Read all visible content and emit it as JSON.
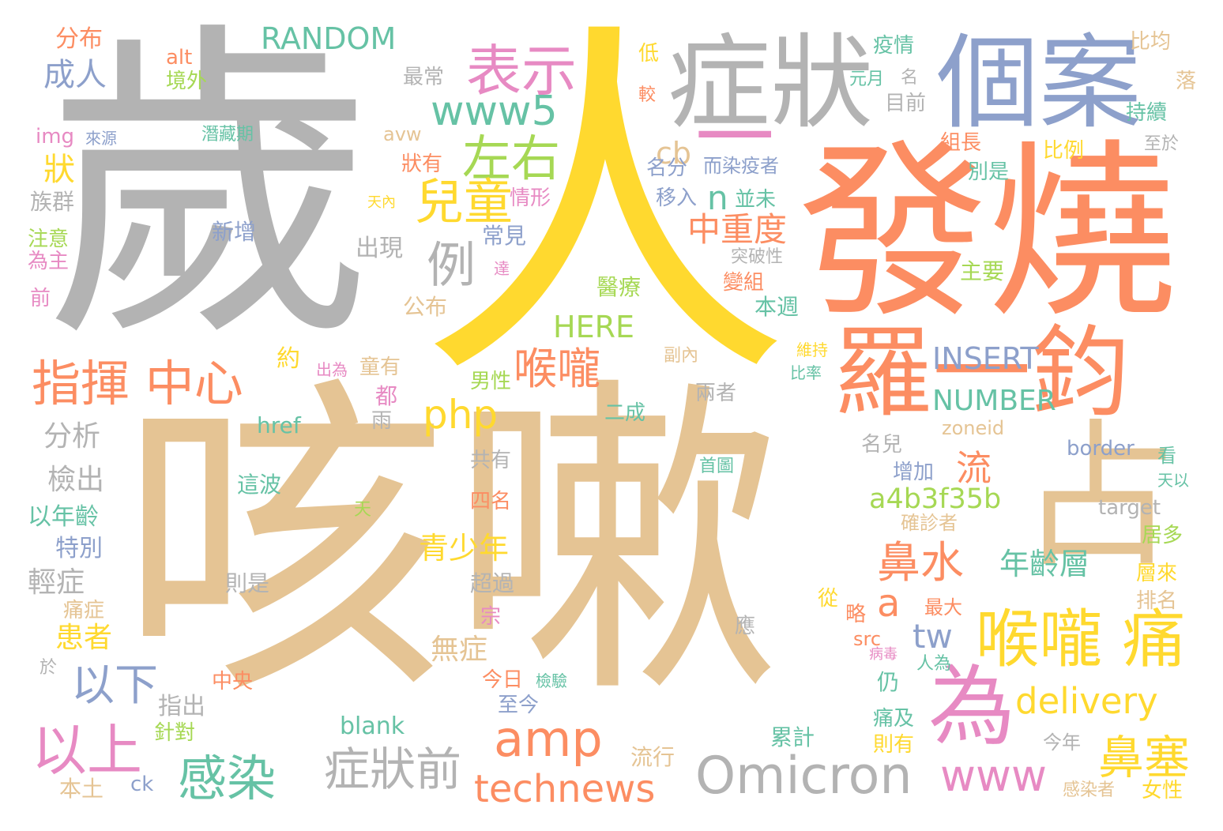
{
  "palette": {
    "gray": "#b3b3b3",
    "salmon": "#fc8d62",
    "blue": "#8da0cb",
    "pink": "#e78ac3",
    "green": "#a6d854",
    "yellow": "#ffd92f",
    "tan": "#e5c494",
    "teal": "#66c2a5"
  },
  "words": [
    {
      "text": "歲",
      "color": "gray"
    },
    {
      "text": "人",
      "color": "yellow"
    },
    {
      "text": "咳嗽",
      "color": "tan"
    },
    {
      "text": "發燒",
      "color": "salmon"
    },
    {
      "text": "症狀",
      "color": "gray"
    },
    {
      "text": "個案",
      "color": "blue"
    },
    {
      "text": "一",
      "color": "pink"
    },
    {
      "text": "羅一鈞",
      "color": "salmon"
    },
    {
      "text": "占",
      "color": "tan"
    },
    {
      "text": "為",
      "color": "pink"
    },
    {
      "text": "喉嚨 痛",
      "color": "yellow"
    },
    {
      "text": "表示",
      "color": "pink"
    },
    {
      "text": "www5",
      "color": "teal"
    },
    {
      "text": "左右",
      "color": "green"
    },
    {
      "text": "兒童",
      "color": "yellow"
    },
    {
      "text": "例",
      "color": "gray"
    },
    {
      "text": "指揮 中心",
      "color": "salmon"
    },
    {
      "text": "喉嚨",
      "color": "salmon"
    },
    {
      "text": "php",
      "color": "yellow"
    },
    {
      "text": "以上",
      "color": "pink"
    },
    {
      "text": "以下",
      "color": "blue"
    },
    {
      "text": "amp",
      "color": "salmon"
    },
    {
      "text": "感染",
      "color": "teal"
    },
    {
      "text": "症狀前",
      "color": "gray"
    },
    {
      "text": "technews",
      "color": "salmon"
    },
    {
      "text": "Omicron",
      "color": "gray"
    },
    {
      "text": "delivery",
      "color": "yellow"
    },
    {
      "text": "鼻塞",
      "color": "yellow"
    },
    {
      "text": "鼻水",
      "color": "salmon"
    },
    {
      "text": "www",
      "color": "pink"
    },
    {
      "text": "tw",
      "color": "blue"
    },
    {
      "text": "a",
      "color": "salmon"
    },
    {
      "text": "流",
      "color": "salmon"
    },
    {
      "text": "a4b3f35b",
      "color": "green"
    },
    {
      "text": "青少年",
      "color": "yellow"
    },
    {
      "text": "年齡層",
      "color": "teal"
    },
    {
      "text": "INSERT",
      "color": "blue"
    },
    {
      "text": "NUMBER",
      "color": "teal"
    },
    {
      "text": "HERE",
      "color": "green"
    },
    {
      "text": "RANDOM",
      "color": "teal"
    },
    {
      "text": "中重度",
      "color": "salmon"
    },
    {
      "text": "n",
      "color": "teal"
    },
    {
      "text": "cb",
      "color": "tan"
    },
    {
      "text": "分布",
      "color": "salmon"
    },
    {
      "text": "alt",
      "color": "salmon"
    },
    {
      "text": "境外",
      "color": "green"
    },
    {
      "text": "成人",
      "color": "blue"
    },
    {
      "text": "最常",
      "color": "gray"
    },
    {
      "text": "img",
      "color": "pink"
    },
    {
      "text": "來源",
      "color": "blue"
    },
    {
      "text": "潛藏期",
      "color": "teal"
    },
    {
      "text": "狀",
      "color": "yellow"
    },
    {
      "text": "族群",
      "color": "gray"
    },
    {
      "text": "注意",
      "color": "green"
    },
    {
      "text": "為主",
      "color": "pink"
    },
    {
      "text": "前",
      "color": "pink"
    },
    {
      "text": "約",
      "color": "yellow"
    },
    {
      "text": "分析",
      "color": "gray"
    },
    {
      "text": "檢出",
      "color": "gray"
    },
    {
      "text": "以年齡",
      "color": "teal"
    },
    {
      "text": "特別",
      "color": "blue"
    },
    {
      "text": "輕症",
      "color": "gray"
    },
    {
      "text": "痛症",
      "color": "tan"
    },
    {
      "text": "患者",
      "color": "yellow"
    },
    {
      "text": "於",
      "color": "gray"
    },
    {
      "text": "本土",
      "color": "tan"
    },
    {
      "text": "ck",
      "color": "blue"
    },
    {
      "text": "針對",
      "color": "green"
    },
    {
      "text": "指出",
      "color": "gray"
    },
    {
      "text": "中央",
      "color": "salmon"
    },
    {
      "text": "blank",
      "color": "teal"
    },
    {
      "text": "出現",
      "color": "gray"
    },
    {
      "text": "公布",
      "color": "tan"
    },
    {
      "text": "狀有",
      "color": "salmon"
    },
    {
      "text": "avw",
      "color": "tan"
    },
    {
      "text": "天內",
      "color": "yellow"
    },
    {
      "text": "情形",
      "color": "pink"
    },
    {
      "text": "新增",
      "color": "blue"
    },
    {
      "text": "常見",
      "color": "blue"
    },
    {
      "text": "達",
      "color": "pink"
    },
    {
      "text": "出為",
      "color": "pink"
    },
    {
      "text": "童有",
      "color": "tan"
    },
    {
      "text": "都",
      "color": "pink"
    },
    {
      "text": "雨",
      "color": "gray"
    },
    {
      "text": "href",
      "color": "teal"
    },
    {
      "text": "共有",
      "color": "gray"
    },
    {
      "text": "四名",
      "color": "salmon"
    },
    {
      "text": "天",
      "color": "green"
    },
    {
      "text": "則是",
      "color": "gray"
    },
    {
      "text": "超過",
      "color": "gray"
    },
    {
      "text": "宗",
      "color": "pink"
    },
    {
      "text": "這波",
      "color": "teal"
    },
    {
      "text": "無症",
      "color": "tan"
    },
    {
      "text": "今日",
      "color": "salmon"
    },
    {
      "text": "檢驗",
      "color": "teal"
    },
    {
      "text": "至今",
      "color": "blue"
    },
    {
      "text": "流行",
      "color": "tan"
    },
    {
      "text": "男性",
      "color": "green"
    },
    {
      "text": "二成",
      "color": "teal"
    },
    {
      "text": "副內",
      "color": "tan"
    },
    {
      "text": "兩者",
      "color": "gray"
    },
    {
      "text": "首圖",
      "color": "teal"
    },
    {
      "text": "應",
      "color": "gray"
    },
    {
      "text": "醫療",
      "color": "green"
    },
    {
      "text": "變組",
      "color": "salmon"
    },
    {
      "text": "本週",
      "color": "teal"
    },
    {
      "text": "突破性",
      "color": "gray"
    },
    {
      "text": "主要",
      "color": "green"
    },
    {
      "text": "低",
      "color": "yellow"
    },
    {
      "text": "較",
      "color": "salmon"
    },
    {
      "text": "疫情",
      "color": "teal"
    },
    {
      "text": "元月",
      "color": "teal"
    },
    {
      "text": "名",
      "color": "gray"
    },
    {
      "text": "目前",
      "color": "gray"
    },
    {
      "text": "名分",
      "color": "blue"
    },
    {
      "text": "而染疫者",
      "color": "blue"
    },
    {
      "text": "移入",
      "color": "blue"
    },
    {
      "text": "並未",
      "color": "teal"
    },
    {
      "text": "組長",
      "color": "salmon"
    },
    {
      "text": "比例",
      "color": "yellow"
    },
    {
      "text": "別是",
      "color": "teal"
    },
    {
      "text": "比均",
      "color": "tan"
    },
    {
      "text": "落",
      "color": "tan"
    },
    {
      "text": "持續",
      "color": "teal"
    },
    {
      "text": "至於",
      "color": "gray"
    },
    {
      "text": "維持",
      "color": "yellow"
    },
    {
      "text": "比率",
      "color": "teal"
    },
    {
      "text": "zoneid",
      "color": "tan"
    },
    {
      "text": "名兒",
      "color": "gray"
    },
    {
      "text": "增加",
      "color": "blue"
    },
    {
      "text": "border",
      "color": "blue"
    },
    {
      "text": "看",
      "color": "teal"
    },
    {
      "text": "天以",
      "color": "teal"
    },
    {
      "text": "target",
      "color": "gray"
    },
    {
      "text": "確診者",
      "color": "tan"
    },
    {
      "text": "居多",
      "color": "green"
    },
    {
      "text": "層來",
      "color": "yellow"
    },
    {
      "text": "排名",
      "color": "tan"
    },
    {
      "text": "從",
      "color": "yellow"
    },
    {
      "text": "略",
      "color": "salmon"
    },
    {
      "text": "最大",
      "color": "salmon"
    },
    {
      "text": "src",
      "color": "salmon"
    },
    {
      "text": "病毒",
      "color": "pink"
    },
    {
      "text": "人為",
      "color": "teal"
    },
    {
      "text": "仍",
      "color": "teal"
    },
    {
      "text": "痛及",
      "color": "teal"
    },
    {
      "text": "則有",
      "color": "yellow"
    },
    {
      "text": "累計",
      "color": "teal"
    },
    {
      "text": "今年",
      "color": "gray"
    },
    {
      "text": "感染者",
      "color": "tan"
    },
    {
      "text": "女性",
      "color": "yellow"
    }
  ]
}
